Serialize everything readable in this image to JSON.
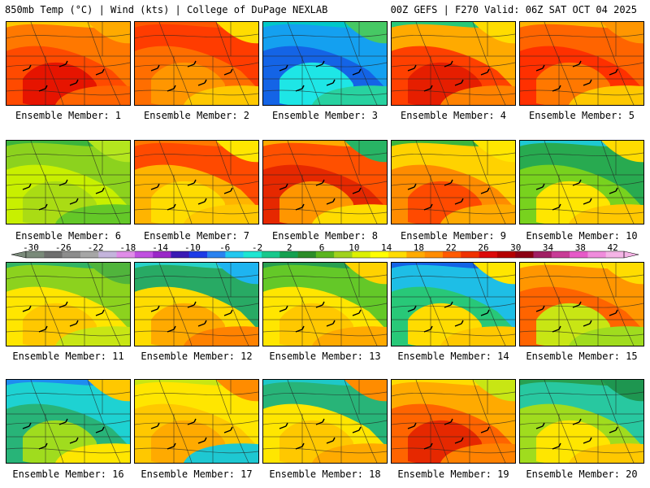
{
  "header": {
    "left": "850mb Temp (°C) | Wind (kts) | College of DuPage NEXLAB",
    "right": "00Z GEFS | F270 Valid: 06Z SAT OCT 04 2025"
  },
  "label_prefix": "Ensemble Member: ",
  "colorbar": {
    "ticks": [
      "-30",
      "-26",
      "-22",
      "-18",
      "-14",
      "-10",
      "-6",
      "-2",
      "2",
      "6",
      "10",
      "14",
      "18",
      "22",
      "26",
      "30",
      "34",
      "38",
      "42"
    ],
    "colors": [
      "#7a8a7a",
      "#6e6e6e",
      "#8c8c8c",
      "#a6a6a6",
      "#c4b4dc",
      "#e08ce8",
      "#c050e0",
      "#9a28c8",
      "#3a1ab4",
      "#1e3ce6",
      "#2a82f0",
      "#22c8f0",
      "#1ee6d2",
      "#18c88c",
      "#14a050",
      "#2c8c28",
      "#5ab41e",
      "#a0d21e",
      "#dcf000",
      "#ffff00",
      "#ffdc00",
      "#ffaa00",
      "#ff8c00",
      "#ff5a00",
      "#f03200",
      "#dc0a0a",
      "#b40000",
      "#8c0014",
      "#a01e64",
      "#c83c96",
      "#e65ac8",
      "#f08cdc",
      "#f5b4e6"
    ]
  },
  "members": [
    {
      "id": 1,
      "label": "1",
      "colors": [
        "#ffc800",
        "#ff7800",
        "#ff4a00",
        "#e61400",
        "#ff6400",
        "#ffaa00"
      ]
    },
    {
      "id": 2,
      "label": "2",
      "colors": [
        "#ff5a00",
        "#ff3c00",
        "#ff6e00",
        "#ff9600",
        "#ffc800",
        "#ffdc00"
      ]
    },
    {
      "id": 3,
      "label": "3",
      "colors": [
        "#00c8c8",
        "#14a0f0",
        "#1464e6",
        "#1ee6e6",
        "#28d2a0",
        "#46c864"
      ]
    },
    {
      "id": 4,
      "label": "4",
      "colors": [
        "#28c878",
        "#ffaa00",
        "#ff4000",
        "#e61e00",
        "#ff8200",
        "#ffdc00"
      ]
    },
    {
      "id": 5,
      "label": "5",
      "colors": [
        "#ffb400",
        "#ff6400",
        "#ff3000",
        "#ff7800",
        "#ffc800",
        "#ff9600"
      ]
    },
    {
      "id": 6,
      "label": "6",
      "colors": [
        "#3cb43c",
        "#8cd21e",
        "#c8f000",
        "#aadc14",
        "#64c828",
        "#b4e61e"
      ]
    },
    {
      "id": 7,
      "label": "7",
      "colors": [
        "#ff7800",
        "#ff4a00",
        "#ffb400",
        "#ffdc00",
        "#ffc800",
        "#ffe600"
      ]
    },
    {
      "id": 8,
      "label": "8",
      "colors": [
        "#ffaa00",
        "#ff5000",
        "#e62800",
        "#ff9600",
        "#ffdc00",
        "#28b464"
      ]
    },
    {
      "id": 9,
      "label": "9",
      "colors": [
        "#3cb43c",
        "#ffd200",
        "#ff8c00",
        "#ff4a00",
        "#ffaa00",
        "#ffe600"
      ]
    },
    {
      "id": 10,
      "label": "10",
      "colors": [
        "#1ec8d2",
        "#28aa50",
        "#78d21e",
        "#ffe600",
        "#ffc800",
        "#ffdc00"
      ]
    },
    {
      "id": 11,
      "label": "11",
      "colors": [
        "#32b464",
        "#8cd21e",
        "#ffe600",
        "#ffc800",
        "#c8e614",
        "#50b43c"
      ]
    },
    {
      "id": 12,
      "label": "12",
      "colors": [
        "#28d2c8",
        "#28aa64",
        "#ffdc00",
        "#ffaa00",
        "#ff8200",
        "#1eb4f0"
      ]
    },
    {
      "id": 13,
      "label": "13",
      "colors": [
        "#28a050",
        "#64c828",
        "#ffe600",
        "#ffc800",
        "#ffaa00",
        "#ffd200"
      ]
    },
    {
      "id": 14,
      "label": "14",
      "colors": [
        "#1464e6",
        "#1ebee6",
        "#28c878",
        "#ffdc00",
        "#ffc800",
        "#ffe600"
      ]
    },
    {
      "id": 15,
      "label": "15",
      "colors": [
        "#ffe600",
        "#ff9600",
        "#ff6400",
        "#c8e614",
        "#a0dc1e",
        "#ffdc00"
      ]
    },
    {
      "id": 16,
      "label": "16",
      "colors": [
        "#1e8cf0",
        "#1ed2d2",
        "#28b478",
        "#a0dc1e",
        "#ffe600",
        "#ffc800"
      ]
    },
    {
      "id": 17,
      "label": "17",
      "colors": [
        "#c8e614",
        "#ffe600",
        "#ffc800",
        "#ffaa00",
        "#1ec8d2",
        "#ff8c00"
      ]
    },
    {
      "id": 18,
      "label": "18",
      "colors": [
        "#1ec8c8",
        "#28b478",
        "#ffe600",
        "#ffc800",
        "#ffaa00",
        "#ff8c00"
      ]
    },
    {
      "id": 19,
      "label": "19",
      "colors": [
        "#ffdc00",
        "#ffaa00",
        "#ff6400",
        "#e62800",
        "#ff8200",
        "#c8e614"
      ]
    },
    {
      "id": 20,
      "label": "20",
      "colors": [
        "#28a050",
        "#28c8a0",
        "#a0dc1e",
        "#ffe600",
        "#ffc800",
        "#1e9650"
      ]
    }
  ]
}
